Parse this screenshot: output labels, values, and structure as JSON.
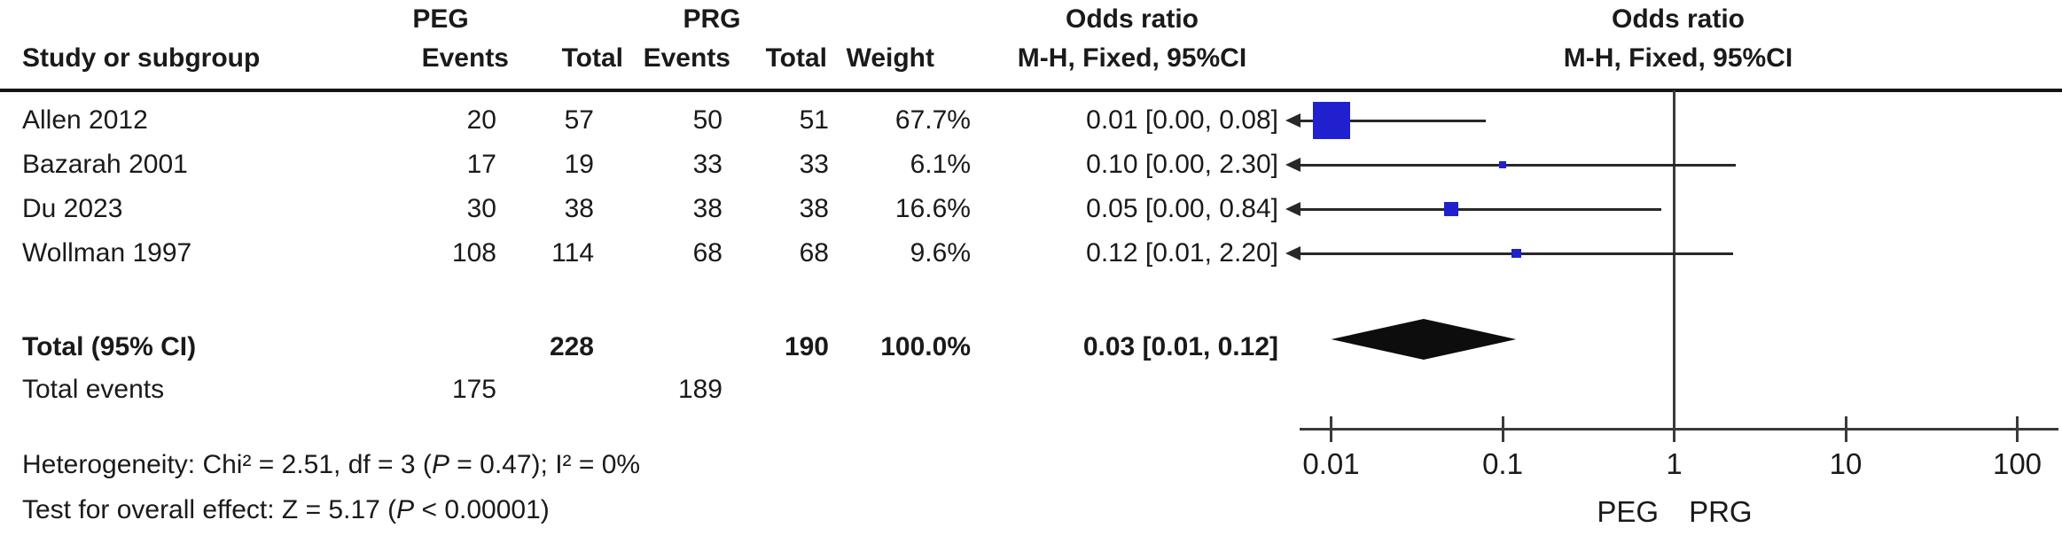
{
  "group_headers": {
    "peg": "PEG",
    "prg": "PRG",
    "odds_ratio_left": "Odds ratio",
    "odds_ratio_right": "Odds ratio"
  },
  "column_headers": {
    "study": "Study or subgroup",
    "events_peg": "Events",
    "total_peg": "Total",
    "events_prg": "Events",
    "total_prg": "Total",
    "weight": "Weight",
    "mh_fixed_left": "M-H, Fixed, 95%CI",
    "mh_fixed_right": "M-H, Fixed, 95%CI"
  },
  "studies": [
    {
      "name": "Allen 2012",
      "peg_events": "20",
      "peg_total": "57",
      "prg_events": "50",
      "prg_total": "51",
      "weight": "67.7%",
      "ci": "0.01 [0.00, 0.08]"
    },
    {
      "name": "Bazarah 2001",
      "peg_events": "17",
      "peg_total": "19",
      "prg_events": "33",
      "prg_total": "33",
      "weight": "6.1%",
      "ci": "0.10 [0.00, 2.30]"
    },
    {
      "name": "Du 2023",
      "peg_events": "30",
      "peg_total": "38",
      "prg_events": "38",
      "prg_total": "38",
      "weight": "16.6%",
      "ci": "0.05 [0.00, 0.84]"
    },
    {
      "name": "Wollman 1997",
      "peg_events": "108",
      "peg_total": "114",
      "prg_events": "68",
      "prg_total": "68",
      "weight": "9.6%",
      "ci": "0.12 [0.01, 2.20]"
    }
  ],
  "totals": {
    "label": "Total (95% CI)",
    "peg_total": "228",
    "prg_total": "190",
    "weight": "100.0%",
    "ci": "0.03 [0.01, 0.12]",
    "events_label": "Total events",
    "peg_events": "175",
    "prg_events": "189"
  },
  "footnotes": {
    "het_pre": "Heterogeneity: Chi² = 2.51, df = 3 (",
    "het_p": "P",
    "het_post": " = 0.47); I² = 0%",
    "test_pre": "Test for overall effect: Z = 5.17 (",
    "test_p": "P",
    "test_post": " < 0.00001)"
  },
  "chart_data": {
    "type": "forest",
    "effect_measure": "Odds ratio, M-H, Fixed, 95% CI",
    "x_scale": "log",
    "x_range": [
      0.01,
      100
    ],
    "ticks": [
      0.01,
      0.1,
      1,
      10,
      100
    ],
    "tick_labels": [
      "0.01",
      "0.1",
      "1",
      "10",
      "100"
    ],
    "null_value": 1,
    "favours_left": "PEG",
    "favours_right": "PRG",
    "studies": [
      {
        "name": "Allen 2012",
        "or": 0.01,
        "ci_low": 0.0,
        "ci_high": 0.08,
        "weight_pct": 67.7,
        "arrow_left": true
      },
      {
        "name": "Bazarah 2001",
        "or": 0.1,
        "ci_low": 0.0,
        "ci_high": 2.3,
        "weight_pct": 6.1,
        "arrow_left": true
      },
      {
        "name": "Du 2023",
        "or": 0.05,
        "ci_low": 0.0,
        "ci_high": 0.84,
        "weight_pct": 16.6,
        "arrow_left": true
      },
      {
        "name": "Wollman 1997",
        "or": 0.12,
        "ci_low": 0.01,
        "ci_high": 2.2,
        "weight_pct": 9.6,
        "arrow_left": true
      }
    ],
    "total": {
      "or": 0.03,
      "ci_low": 0.01,
      "ci_high": 0.12,
      "weight_pct": 100.0
    }
  },
  "colors": {
    "marker_blue": "#2020cf",
    "diamond_black": "#0d0d0d",
    "line_dark": "#282828",
    "axis_gray": "#3a3a3a"
  }
}
